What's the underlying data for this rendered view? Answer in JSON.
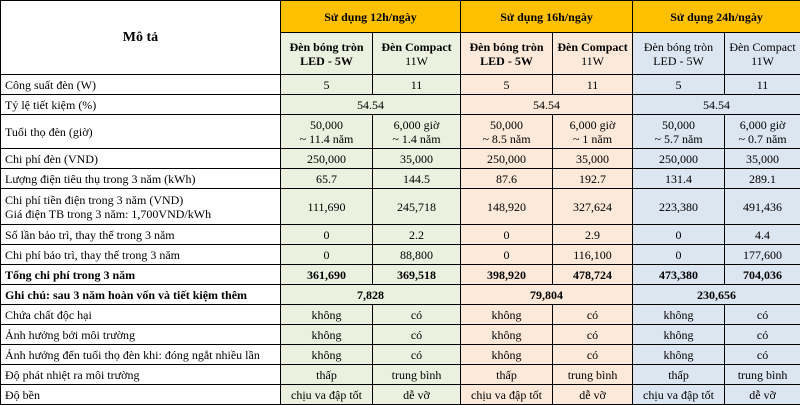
{
  "header": {
    "description": "Mô tả",
    "groups": [
      "Sử dụng 12h/ngày",
      "Sử dụng 16h/ngày",
      "Sử dụng 24h/ngày"
    ],
    "lamp_led": "Đèn bóng tròn LED - 5W",
    "lamp_compact_line1": "Đèn Compact",
    "lamp_compact_line2": "11W"
  },
  "rows": {
    "power": {
      "label": "Công suất đèn (W)",
      "v": [
        "5",
        "11",
        "5",
        "11",
        "5",
        "11"
      ]
    },
    "saving": {
      "label": "Tỷ lệ tiết kiệm (%)",
      "v": [
        "54.54",
        "54.54",
        "54.54"
      ]
    },
    "life": {
      "label": "Tuổi thọ đèn (giờ)",
      "v": [
        [
          "50,000",
          "~ 11.4 năm"
        ],
        [
          "6,000 giờ",
          "~ 1.4 năm"
        ],
        [
          "50,000",
          "~ 8.5 năm"
        ],
        [
          "6,000 giờ",
          "~ 1 năm"
        ],
        [
          "50,000",
          "~ 5.7 năm"
        ],
        [
          "6,000 giờ",
          "~ 0.7 năm"
        ]
      ]
    },
    "cost": {
      "label": "Chi phí đèn (VND)",
      "v": [
        "250,000",
        "35,000",
        "250,000",
        "35,000",
        "250,000",
        "35,000"
      ]
    },
    "energy": {
      "label": "Lượng điện tiêu thụ trong 3 năm (kWh)",
      "v": [
        "65.7",
        "144.5",
        "87.6",
        "192.7",
        "131.4",
        "289.1"
      ]
    },
    "elec": {
      "label1": "Chi phí tiền điện trong 3 năm (VND)",
      "label2": "Giá điện TB trong 3 năm: 1,700VND/kWh",
      "v": [
        "111,690",
        "245,718",
        "148,920",
        "327,624",
        "223,380",
        "491,436"
      ]
    },
    "maint_count": {
      "label": "Số lần bảo trì, thay thế trong 3 năm",
      "v": [
        "0",
        "2.2",
        "0",
        "2.9",
        "0",
        "4.4"
      ]
    },
    "maint_cost": {
      "label": "Chi phí bảo trì, thay thế trong 3 năm",
      "v": [
        "0",
        "88,800",
        "0",
        "116,100",
        "0",
        "177,600"
      ]
    },
    "total": {
      "label": "Tổng chi phí trong 3 năm",
      "v": [
        "361,690",
        "369,518",
        "398,920",
        "478,724",
        "473,380",
        "704,036"
      ]
    },
    "note": {
      "label": "Ghi chú: sau 3 năm hoàn vốn và tiết kiệm thêm",
      "v": [
        "7,828",
        "79,804",
        "230,656"
      ]
    },
    "toxic": {
      "label": "Chứa chất độc hại",
      "v": [
        "không",
        "có",
        "không",
        "có",
        "không",
        "có"
      ]
    },
    "env": {
      "label": "Ảnh hưởng bởi môi trường",
      "v": [
        "không",
        "có",
        "không",
        "có",
        "không",
        "có"
      ]
    },
    "onoff": {
      "label": "Ảnh hưởng đến tuổi thọ đèn khi: đóng ngắt nhiều lần",
      "v": [
        "không",
        "có",
        "không",
        "có",
        "không",
        "có"
      ]
    },
    "heat": {
      "label": "Độ phát nhiệt ra môi trường",
      "v": [
        "thấp",
        "trung bình",
        "thấp",
        "trung bình",
        "thấp",
        "trung bình"
      ]
    },
    "durability": {
      "label": "Độ bền",
      "v": [
        "chịu va đập tốt",
        "dễ vỡ",
        "chịu va đập tốt",
        "dễ vỡ",
        "chịu va đập tốt",
        "dễ vỡ"
      ]
    }
  }
}
